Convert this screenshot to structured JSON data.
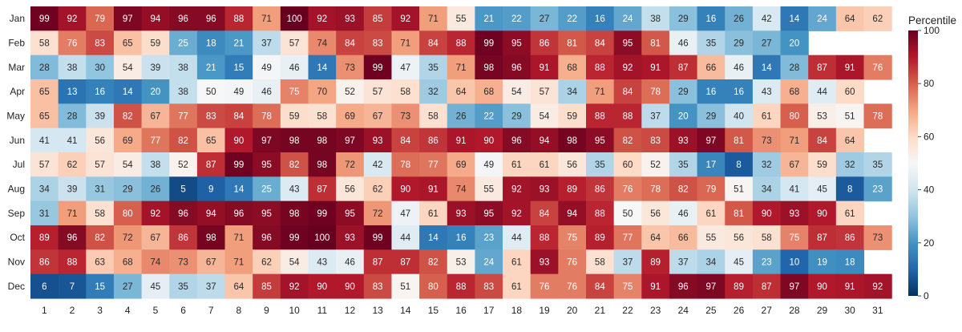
{
  "chart_data": {
    "type": "heatmap",
    "title": "",
    "xlabel": "",
    "ylabel": "",
    "x": [
      1,
      2,
      3,
      4,
      5,
      6,
      7,
      8,
      9,
      10,
      11,
      12,
      13,
      14,
      15,
      16,
      17,
      18,
      19,
      20,
      21,
      22,
      23,
      24,
      25,
      26,
      27,
      28,
      29,
      30,
      31
    ],
    "y": [
      "Jan",
      "Feb",
      "Mar",
      "Apr",
      "May",
      "Jun",
      "Jul",
      "Aug",
      "Sep",
      "Oct",
      "Nov",
      "Dec"
    ],
    "z": [
      [
        99,
        92,
        79,
        97,
        94,
        96,
        96,
        88,
        71,
        100,
        92,
        93,
        85,
        92,
        71,
        55,
        21,
        22,
        27,
        22,
        16,
        24,
        38,
        29,
        16,
        26,
        42,
        14,
        24,
        64,
        62
      ],
      [
        58,
        76,
        83,
        65,
        59,
        25,
        18,
        21,
        37,
        57,
        74,
        84,
        83,
        71,
        84,
        88,
        99,
        95,
        86,
        81,
        84,
        95,
        81,
        46,
        35,
        29,
        27,
        20,
        null,
        null,
        null
      ],
      [
        28,
        38,
        30,
        54,
        39,
        38,
        21,
        15,
        49,
        46,
        14,
        73,
        99,
        47,
        35,
        71,
        98,
        96,
        91,
        68,
        88,
        92,
        91,
        87,
        66,
        46,
        14,
        28,
        87,
        91,
        76
      ],
      [
        65,
        13,
        16,
        14,
        20,
        38,
        50,
        49,
        46,
        75,
        70,
        52,
        57,
        58,
        32,
        64,
        68,
        54,
        57,
        34,
        71,
        84,
        78,
        29,
        16,
        16,
        43,
        68,
        44,
        60,
        null
      ],
      [
        65,
        28,
        39,
        82,
        67,
        77,
        83,
        84,
        78,
        59,
        58,
        69,
        67,
        73,
        58,
        26,
        22,
        29,
        54,
        59,
        88,
        88,
        37,
        20,
        29,
        40,
        61,
        80,
        53,
        51,
        78
      ],
      [
        41,
        41,
        56,
        69,
        77,
        82,
        65,
        90,
        97,
        98,
        98,
        97,
        93,
        84,
        86,
        91,
        90,
        96,
        94,
        98,
        95,
        82,
        83,
        93,
        97,
        81,
        73,
        71,
        84,
        64,
        null
      ],
      [
        57,
        62,
        57,
        54,
        38,
        52,
        87,
        99,
        95,
        82,
        98,
        72,
        42,
        78,
        77,
        69,
        49,
        61,
        61,
        56,
        35,
        60,
        52,
        35,
        17,
        8,
        32,
        67,
        59,
        32,
        35
      ],
      [
        34,
        39,
        31,
        29,
        26,
        5,
        9,
        14,
        25,
        43,
        87,
        56,
        62,
        90,
        91,
        74,
        55,
        92,
        93,
        89,
        86,
        76,
        78,
        82,
        79,
        51,
        34,
        41,
        45,
        8,
        23
      ],
      [
        31,
        71,
        58,
        80,
        92,
        96,
        94,
        96,
        95,
        98,
        99,
        95,
        72,
        47,
        61,
        93,
        95,
        92,
        84,
        94,
        88,
        50,
        56,
        46,
        61,
        81,
        90,
        93,
        90,
        61,
        null
      ],
      [
        89,
        96,
        82,
        72,
        67,
        86,
        98,
        71,
        96,
        99,
        100,
        93,
        99,
        44,
        14,
        16,
        23,
        44,
        88,
        75,
        89,
        77,
        64,
        66,
        55,
        56,
        58,
        75,
        87,
        86,
        73
      ],
      [
        86,
        88,
        63,
        68,
        74,
        73,
        67,
        71,
        62,
        54,
        43,
        46,
        87,
        87,
        82,
        53,
        24,
        61,
        93,
        76,
        58,
        37,
        89,
        37,
        34,
        45,
        23,
        10,
        19,
        18,
        null
      ],
      [
        6,
        7,
        15,
        27,
        45,
        35,
        37,
        64,
        85,
        92,
        90,
        90,
        83,
        51,
        80,
        88,
        83,
        61,
        76,
        76,
        84,
        75,
        91,
        96,
        97,
        89,
        87,
        97,
        90,
        91,
        92
      ]
    ],
    "zlim": [
      0,
      100
    ],
    "colorscale": "RdBu reversed (0 = dark blue, 50 = white, 100 = dark red)",
    "colors": {
      "low": "#053061",
      "mid": "#f7f7f7",
      "high": "#67001f"
    },
    "colorbar": {
      "title": "Percentile",
      "ticks": [
        0,
        20,
        40,
        60,
        80,
        100
      ]
    },
    "grid": false,
    "show_cell_values": true
  }
}
